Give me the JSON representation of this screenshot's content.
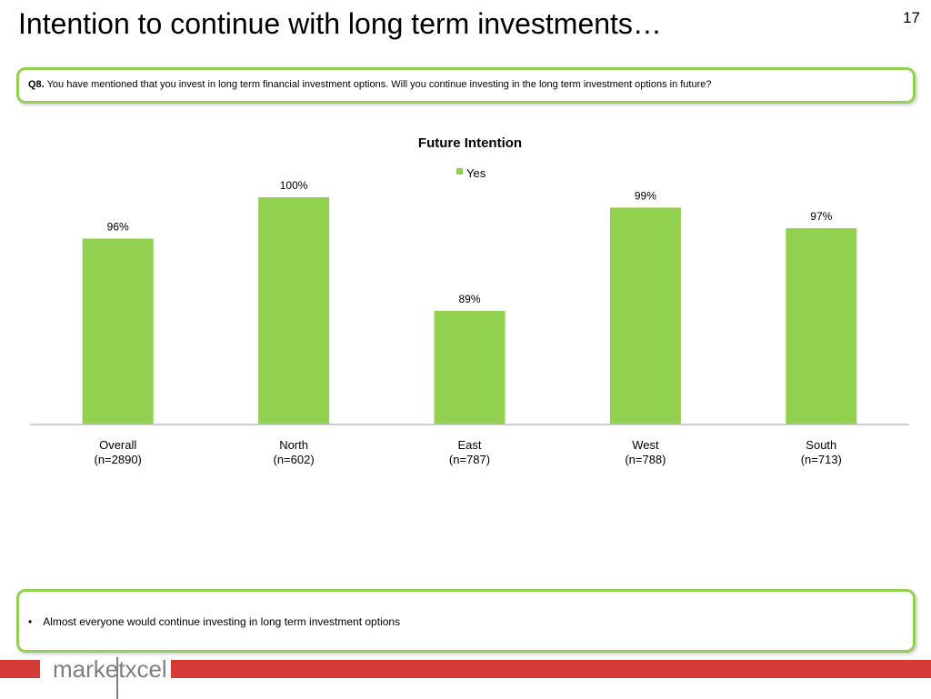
{
  "slide": {
    "title": "Intention to continue with long term investments…",
    "page_number": "17"
  },
  "question": {
    "label": "Q8.",
    "text": "You have mentioned that you invest in long term financial investment options. Will you continue investing in the long term investment options in future?"
  },
  "chart_data": {
    "type": "bar",
    "title": "Future Intention",
    "legend_position": "top",
    "grid": false,
    "categories": [
      "Overall",
      "North",
      "East",
      "West",
      "South"
    ],
    "category_sublabels": [
      "(n=2890)",
      "(n=602)",
      "(n=787)",
      "(n=788)",
      "(n=713)"
    ],
    "series": [
      {
        "name": "Yes",
        "color": "#92d050",
        "values": [
          96,
          100,
          89,
          99,
          97
        ],
        "labels": [
          "96%",
          "100%",
          "89%",
          "99%",
          "97%"
        ]
      }
    ],
    "ylim": [
      78,
      100
    ],
    "xlabel": "",
    "ylabel": ""
  },
  "notes": [
    "Almost everyone would continue investing in long term investment options"
  ],
  "footer": {
    "logo_text": "marketxcel",
    "bar_color": "#d43a36"
  }
}
